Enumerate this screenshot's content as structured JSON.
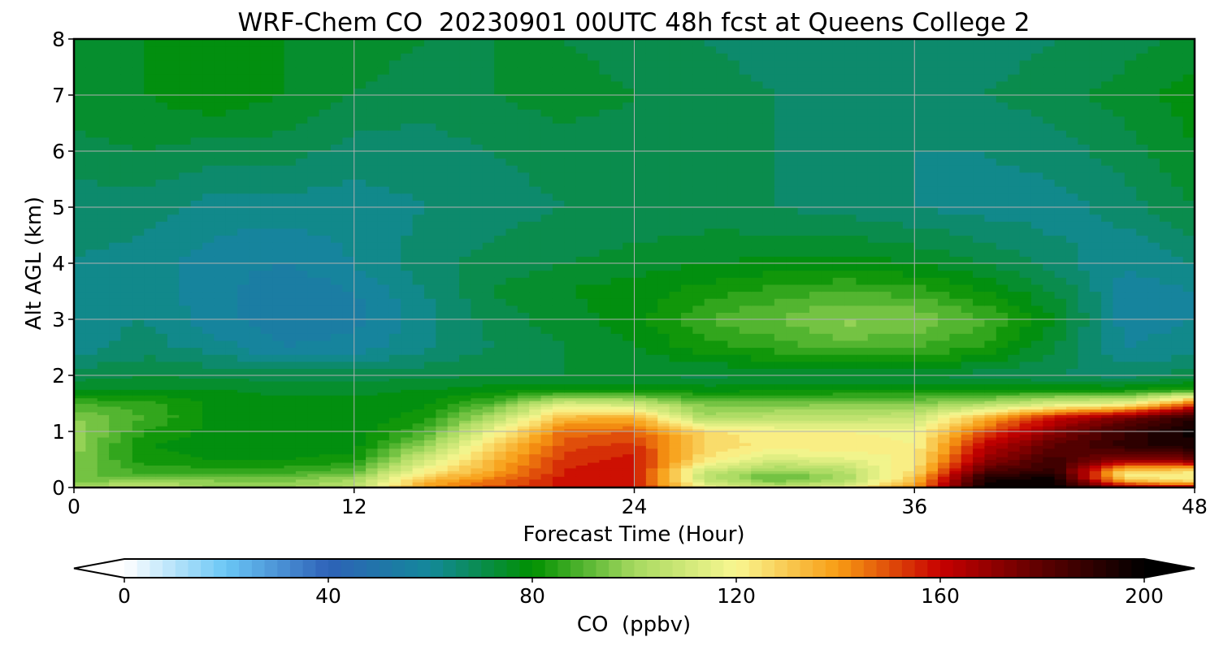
{
  "chart_data": {
    "type": "heatmap",
    "title": "WRF-Chem CO  20230901 00UTC 48h fcst at Queens College 2",
    "xlabel": "Forecast Time (Hour)",
    "ylabel": "Alt AGL (km)",
    "xlim": [
      0,
      48
    ],
    "ylim": [
      0,
      8
    ],
    "xticks": [
      0,
      12,
      24,
      36,
      48
    ],
    "yticks": [
      0,
      1,
      2,
      3,
      4,
      5,
      6,
      7,
      8
    ],
    "grid": true,
    "x": [
      0,
      3,
      6,
      9,
      12,
      15,
      18,
      21,
      24,
      27,
      30,
      33,
      36,
      39,
      42,
      45,
      48
    ],
    "y": [
      0,
      0.1,
      0.2,
      0.3,
      0.5,
      0.75,
      1.0,
      1.25,
      1.5,
      1.75,
      2.0,
      2.5,
      3.0,
      3.5,
      4.0,
      5.0,
      6.0,
      7.0,
      8.0
    ],
    "z": [
      [
        102,
        110,
        100,
        100,
        106,
        140,
        150,
        158,
        158,
        120,
        112,
        118,
        140,
        200,
        200,
        175,
        170
      ],
      [
        95,
        100,
        97,
        96,
        102,
        135,
        146,
        158,
        160,
        110,
        95,
        105,
        135,
        196,
        200,
        140,
        130
      ],
      [
        92,
        90,
        93,
        92,
        98,
        128,
        142,
        157,
        160,
        106,
        90,
        100,
        130,
        192,
        196,
        122,
        118
      ],
      [
        96,
        86,
        86,
        86,
        90,
        120,
        138,
        156,
        160,
        110,
        98,
        104,
        126,
        182,
        190,
        128,
        125
      ],
      [
        96,
        82,
        80,
        80,
        82,
        110,
        134,
        154,
        158,
        124,
        112,
        115,
        122,
        170,
        186,
        170,
        175
      ],
      [
        98,
        80,
        78,
        78,
        78,
        98,
        128,
        150,
        154,
        128,
        122,
        124,
        120,
        162,
        180,
        190,
        195
      ],
      [
        100,
        84,
        78,
        77,
        77,
        88,
        118,
        146,
        148,
        126,
        120,
        120,
        118,
        150,
        172,
        188,
        198
      ],
      [
        96,
        88,
        79,
        77,
        77,
        82,
        104,
        134,
        136,
        102,
        106,
        106,
        108,
        134,
        160,
        176,
        192
      ],
      [
        88,
        86,
        79,
        77,
        77,
        79,
        90,
        112,
        108,
        94,
        94,
        96,
        96,
        102,
        112,
        116,
        150
      ],
      [
        76,
        76,
        76,
        75,
        75,
        76,
        78,
        80,
        80,
        78,
        79,
        79,
        80,
        80,
        80,
        80,
        84
      ],
      [
        70,
        72,
        71,
        70,
        70,
        71,
        72,
        72,
        72,
        71,
        72,
        72,
        72,
        70,
        68,
        66,
        70
      ],
      [
        62,
        66,
        62,
        56,
        58,
        63,
        68,
        72,
        76,
        82,
        86,
        90,
        88,
        84,
        72,
        60,
        62
      ],
      [
        62,
        64,
        58,
        52,
        54,
        62,
        70,
        74,
        78,
        88,
        92,
        97,
        96,
        88,
        76,
        58,
        60
      ],
      [
        62,
        62,
        58,
        52,
        56,
        64,
        72,
        76,
        78,
        82,
        86,
        88,
        86,
        80,
        72,
        58,
        60
      ],
      [
        64,
        62,
        58,
        56,
        60,
        66,
        70,
        72,
        74,
        76,
        77,
        78,
        76,
        72,
        66,
        60,
        64
      ],
      [
        66,
        66,
        62,
        62,
        62,
        64,
        66,
        68,
        68,
        69,
        68,
        66,
        64,
        62,
        62,
        66,
        72
      ],
      [
        70,
        72,
        70,
        70,
        66,
        66,
        68,
        70,
        70,
        70,
        68,
        66,
        64,
        64,
        66,
        70,
        76
      ],
      [
        76,
        76,
        79,
        76,
        72,
        70,
        72,
        74,
        72,
        70,
        68,
        66,
        66,
        68,
        70,
        74,
        78
      ],
      [
        74,
        76,
        78,
        76,
        74,
        72,
        72,
        72,
        70,
        68,
        66,
        66,
        66,
        66,
        68,
        70,
        74
      ]
    ],
    "colorbar": {
      "label": "CO  (ppbv)",
      "min": 0,
      "max": 200,
      "ticks": [
        0,
        40,
        80,
        120,
        160,
        200
      ],
      "extend": "both",
      "colors": [
        "#ffffff",
        "#6ac6f5",
        "#2e62b8",
        "#13889a",
        "#009000",
        "#a6d960",
        "#f9f791",
        "#f89c13",
        "#c80000",
        "#5c0000",
        "#000000"
      ]
    }
  }
}
